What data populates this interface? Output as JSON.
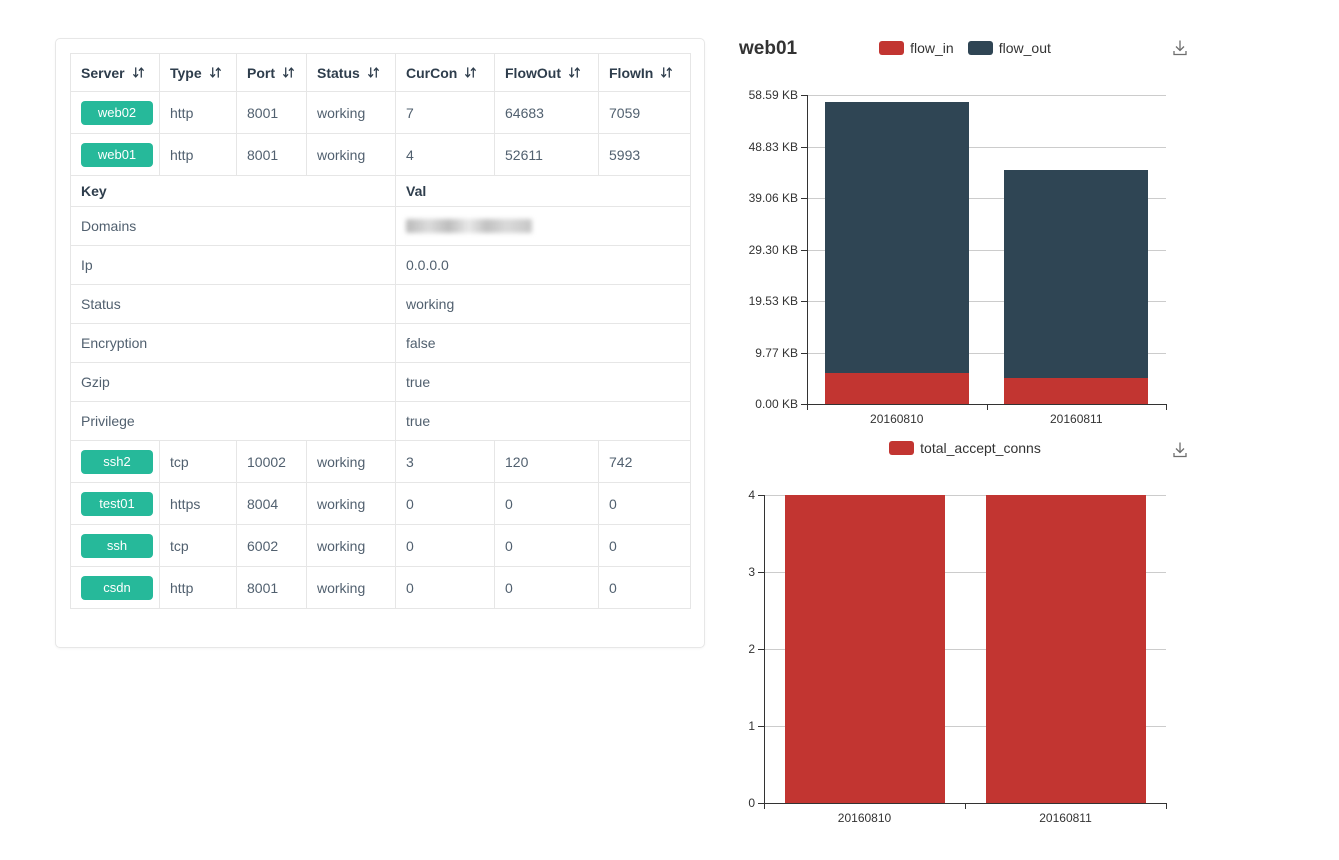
{
  "colors": {
    "badge_green": "#26b99a",
    "series_red": "#c23531",
    "series_dark": "#2f4554",
    "table_border": "#e6e6e6",
    "axis": "#333333",
    "grid": "#cccccc"
  },
  "icons": {
    "sort": "sort-arrows-icon",
    "download": "download-icon"
  },
  "table": {
    "columns": [
      {
        "label": "Server",
        "sortable": true
      },
      {
        "label": "Type",
        "sortable": true
      },
      {
        "label": "Port",
        "sortable": true
      },
      {
        "label": "Status",
        "sortable": true
      },
      {
        "label": "CurCon",
        "sortable": true
      },
      {
        "label": "FlowOut",
        "sortable": true
      },
      {
        "label": "FlowIn",
        "sortable": true
      }
    ],
    "top_rows": [
      {
        "server": "web02",
        "type": "http",
        "port": "8001",
        "status": "working",
        "curcon": "7",
        "flowout": "64683",
        "flowin": "7059"
      },
      {
        "server": "web01",
        "type": "http",
        "port": "8001",
        "status": "working",
        "curcon": "4",
        "flowout": "52611",
        "flowin": "5993"
      }
    ],
    "kv": {
      "key_header": "Key",
      "val_header": "Val",
      "rows": [
        {
          "key": "Domains",
          "val": "",
          "redacted": true
        },
        {
          "key": "Ip",
          "val": "0.0.0.0",
          "redacted": false
        },
        {
          "key": "Status",
          "val": "working",
          "redacted": false
        },
        {
          "key": "Encryption",
          "val": "false",
          "redacted": false
        },
        {
          "key": "Gzip",
          "val": "true",
          "redacted": false
        },
        {
          "key": "Privilege",
          "val": "true",
          "redacted": false
        }
      ]
    },
    "bottom_rows": [
      {
        "server": "ssh2",
        "type": "tcp",
        "port": "10002",
        "status": "working",
        "curcon": "3",
        "flowout": "120",
        "flowin": "742"
      },
      {
        "server": "test01",
        "type": "https",
        "port": "8004",
        "status": "working",
        "curcon": "0",
        "flowout": "0",
        "flowin": "0"
      },
      {
        "server": "ssh",
        "type": "tcp",
        "port": "6002",
        "status": "working",
        "curcon": "0",
        "flowout": "0",
        "flowin": "0"
      },
      {
        "server": "csdn",
        "type": "http",
        "port": "8001",
        "status": "working",
        "curcon": "0",
        "flowout": "0",
        "flowin": "0"
      }
    ]
  },
  "chart_data": [
    {
      "type": "bar",
      "stacked": true,
      "title": "web01",
      "categories": [
        "20160810",
        "20160811"
      ],
      "series": [
        {
          "name": "flow_in",
          "color": "#c23531",
          "values": [
            5.85,
            4.88
          ]
        },
        {
          "name": "flow_out",
          "color": "#2f4554",
          "values": [
            51.38,
            39.45
          ]
        }
      ],
      "unit": "KB",
      "yticks": [
        "0.00 KB",
        "9.77 KB",
        "19.53 KB",
        "29.30 KB",
        "39.06 KB",
        "48.83 KB",
        "58.59 KB"
      ],
      "ylim": [
        0,
        58.59
      ],
      "xlabel": "",
      "ylabel": "",
      "legend_position": "top-center",
      "grid": true
    },
    {
      "type": "bar",
      "stacked": false,
      "title": "",
      "categories": [
        "20160810",
        "20160811"
      ],
      "series": [
        {
          "name": "total_accept_conns",
          "color": "#c23531",
          "values": [
            4,
            4
          ]
        }
      ],
      "unit": "",
      "yticks": [
        "0",
        "1",
        "2",
        "3",
        "4"
      ],
      "ylim": [
        0,
        4
      ],
      "xlabel": "",
      "ylabel": "",
      "legend_position": "top-center",
      "grid": true
    }
  ]
}
